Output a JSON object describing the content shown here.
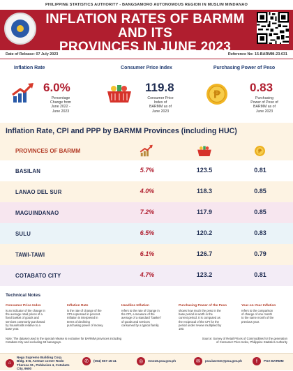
{
  "header": {
    "agency_line": "PHILIPPINE STATISTICS AUTHORITY - BANGSAMORO AUTONOMOUS REGION IN MUSLIM MINDANAO",
    "title_line1": "INFLATION RATES OF BARMM AND ITS",
    "title_line2": "PROVINCES IN JUNE 2023",
    "release_date": "Date of Release: 07 July 2023",
    "reference_no": "Reference No: 15-BARMM-23-031"
  },
  "stats": {
    "inflation": {
      "heading": "Inflation Rate",
      "value": "6.0%",
      "desc": [
        "Percentage",
        "Change from",
        "June 2022 -",
        "June 2023"
      ]
    },
    "cpi": {
      "heading": "Consumer Price Index",
      "value": "119.8",
      "desc": [
        "Consumer Price",
        "Index of",
        "BARMM as of",
        "June 2023"
      ]
    },
    "ppp": {
      "heading": "Purchasing Power of Peso",
      "value": "0.83",
      "desc": [
        "Purchasing",
        "Power of Peso of",
        "BARMM as of",
        "June 2023"
      ]
    }
  },
  "table": {
    "section_title": "Inflation Rate, CPI and PPP by BARMM Provinces (including HUC)",
    "col_label": "PROVINCES OF BARMM",
    "rows": [
      {
        "province": "BASILAN",
        "inflation": "5.7%",
        "cpi": "123.5",
        "ppp": "0.81"
      },
      {
        "province": "LANAO DEL SUR",
        "inflation": "4.0%",
        "cpi": "118.3",
        "ppp": "0.85"
      },
      {
        "province": "MAGUINDANAO",
        "inflation": "7.2%",
        "cpi": "117.9",
        "ppp": "0.85"
      },
      {
        "province": "SULU",
        "inflation": "6.5%",
        "cpi": "120.2",
        "ppp": "0.83"
      },
      {
        "province": "TAWI-TAWI",
        "inflation": "6.1%",
        "cpi": "126.7",
        "ppp": "0.79"
      },
      {
        "province": "COTABATO CITY",
        "inflation": "4.7%",
        "cpi": "123.2",
        "ppp": "0.81"
      }
    ],
    "row_colors": [
      "#ffffff",
      "#fdf3e3",
      "#f7e6ef",
      "#eaf3f8",
      "#fdf3e3",
      "#f3ecf6"
    ]
  },
  "technical_notes": {
    "title": "Technical Notes",
    "items": [
      {
        "title": "Consumer Price Index",
        "body": [
          "is an indicator of the change in",
          "the average retail prices of a",
          "fixed basket of goods and",
          "services commonly purchased",
          "by households relative to a",
          "base year."
        ]
      },
      {
        "title": "Inflation Rate",
        "body": [
          "is the rate of change of the",
          "CPI expressed in percent.",
          "Inflation is interpreted in",
          "terms of declining",
          "purchasing power of money."
        ]
      },
      {
        "title": "Headline Inflation",
        "body": [
          "refers to the rate of change in",
          "the CPI, a measure of the",
          "average of a standard \"basket\"",
          "of goods and services",
          "consumed by a typical family."
        ]
      },
      {
        "title": "Purchasing Power of the Peso",
        "body": [
          "shows how much the peso in the",
          "base period is worth in the",
          "current period. It is computed as",
          "the reciprocal of the CPI for the",
          "period under review multiplied by",
          "100."
        ]
      },
      {
        "title": "Year-on-Year Inflation",
        "body": [
          "refers to the comparison",
          "of change of one month",
          "to the same month of the",
          "previous year."
        ]
      }
    ],
    "note": [
      "Note: The dataset used in the special release is exclusive for BARMM provinces including",
      "Cotabato City and excluding 63 barangays."
    ],
    "source": [
      "Source: Survey of Retail Prices of Commodities for the generation",
      "of Consumer Price Index, Philippine Statistics Authority"
    ]
  },
  "footer": {
    "address": [
      "Nega Supremo Building Corp.",
      "Bldg. 6-B, Avenue corner Rodo",
      "Theresa St., Poblacion 4, Cotabato",
      "City, 9600"
    ],
    "phone": "(064) 557-15-41",
    "website": "rsso15.psa.gov.ph",
    "email": "psa.barmm@psa.gov.ph",
    "facebook": "PSA-BARMM"
  },
  "colors": {
    "brand_red": "#b01e2f",
    "navy": "#1f2d52",
    "cream": "#fdf3e3"
  }
}
